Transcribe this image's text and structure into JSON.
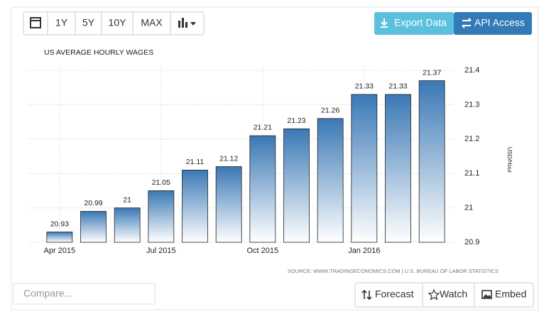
{
  "toolbar": {
    "ranges": [
      "1Y",
      "5Y",
      "10Y",
      "MAX"
    ],
    "export": "Export Data",
    "api": "API Access"
  },
  "chart_data": {
    "type": "bar",
    "title": "US AVERAGE HOURLY WAGES",
    "categories": [
      "Apr 2015",
      null,
      null,
      "Jul 2015",
      null,
      null,
      "Oct 2015",
      null,
      null,
      "Jan 2016",
      null,
      null
    ],
    "values": [
      20.93,
      20.99,
      21,
      21.05,
      21.11,
      21.12,
      21.21,
      21.23,
      21.26,
      21.33,
      21.33,
      21.37
    ],
    "color": "#3a78b5",
    "ylim": [
      20.9,
      21.4
    ],
    "yticks": [
      20.9,
      21,
      21.1,
      21.2,
      21.3,
      21.4
    ],
    "ylabel": "USD/Hour",
    "grid": true,
    "source": "SOURCE: WWW.TRADINGECONOMICS.COM | U.S. BUREAU OF LABOR STATISTICS"
  },
  "footer": {
    "compare_placeholder": "Compare...",
    "buttons": [
      "Forecast",
      "Watch",
      "Embed"
    ]
  }
}
